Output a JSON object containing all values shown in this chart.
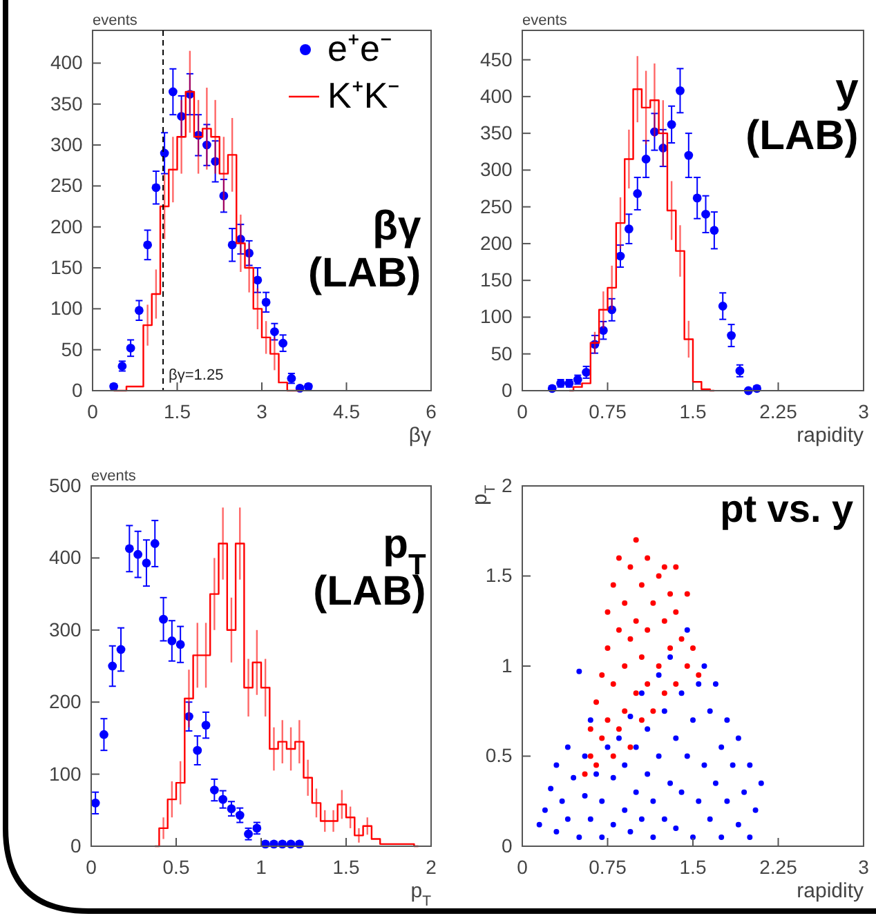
{
  "chart_data": [
    {
      "type": "scatter",
      "xlabel": "βγ",
      "ylabel": "events",
      "xlim": [
        0,
        6
      ],
      "xticks": [
        0,
        1.5,
        3,
        4.5,
        6
      ],
      "ylim": [
        0,
        440
      ],
      "yticks": [
        0,
        50,
        100,
        150,
        200,
        250,
        300,
        350,
        400
      ],
      "legend": "top right",
      "annotations": [
        "βγ (LAB)"
      ],
      "ref_lines": [
        {
          "axis": "x",
          "value": 1.25,
          "label": "βγ=1.25",
          "line_style": "dashed",
          "color": "#000000"
        }
      ],
      "series": [
        {
          "name": "e⁺e⁻",
          "marker": "circle",
          "color": "#0000ff",
          "x": [
            0.375,
            0.525,
            0.675,
            0.825,
            0.975,
            1.125,
            1.275,
            1.425,
            1.575,
            1.725,
            1.875,
            2.025,
            2.175,
            2.325,
            2.475,
            2.625,
            2.775,
            2.925,
            3.075,
            3.225,
            3.375,
            3.525,
            3.675,
            3.825
          ],
          "values": [
            5,
            30,
            52,
            98,
            178,
            248,
            290,
            365,
            335,
            362,
            312,
            300,
            280,
            238,
            178,
            185,
            168,
            135,
            108,
            72,
            58,
            15,
            3,
            5
          ],
          "errors": [
            3,
            6,
            10,
            12,
            18,
            20,
            25,
            28,
            25,
            25,
            25,
            25,
            25,
            20,
            20,
            18,
            15,
            15,
            12,
            10,
            10,
            6,
            3,
            3
          ]
        },
        {
          "name": "K⁺K⁻",
          "type": "step",
          "color": "#ff0000",
          "x": [
            0.375,
            0.525,
            0.675,
            0.825,
            0.975,
            1.125,
            1.275,
            1.425,
            1.575,
            1.725,
            1.875,
            2.025,
            2.175,
            2.325,
            2.475,
            2.625,
            2.775,
            2.925,
            3.075,
            3.225,
            3.375,
            3.525,
            3.675
          ],
          "values": [
            0,
            0,
            5,
            5,
            80,
            118,
            225,
            270,
            310,
            365,
            310,
            320,
            310,
            265,
            288,
            180,
            150,
            100,
            65,
            45,
            10,
            0,
            0
          ],
          "errors": [
            null,
            null,
            null,
            null,
            25,
            30,
            40,
            40,
            45,
            50,
            45,
            50,
            45,
            45,
            45,
            35,
            30,
            25,
            20,
            20,
            null,
            null,
            null
          ]
        }
      ]
    },
    {
      "type": "scatter",
      "xlabel": "rapidity",
      "ylabel": "events",
      "xlim": [
        0,
        3
      ],
      "xticks": [
        0,
        0.75,
        1.5,
        2.25,
        3
      ],
      "ylim": [
        0,
        490
      ],
      "yticks": [
        0,
        50,
        100,
        150,
        200,
        250,
        300,
        350,
        400,
        450
      ],
      "annotations": [
        "y (LAB)"
      ],
      "series": [
        {
          "marker": "circle",
          "color": "#0000ff",
          "x": [
            0.2625,
            0.3375,
            0.4125,
            0.4875,
            0.5625,
            0.6375,
            0.7125,
            0.7875,
            0.8625,
            0.9375,
            1.0125,
            1.0875,
            1.1625,
            1.2375,
            1.3125,
            1.3875,
            1.4625,
            1.5375,
            1.6125,
            1.6875,
            1.7625,
            1.8375,
            1.9125,
            1.9875,
            2.0625
          ],
          "values": [
            3,
            10,
            10,
            15,
            25,
            63,
            82,
            110,
            183,
            220,
            268,
            315,
            352,
            330,
            362,
            408,
            320,
            262,
            240,
            218,
            115,
            75,
            27,
            0,
            3
          ],
          "errors": [
            3,
            5,
            5,
            6,
            8,
            12,
            12,
            15,
            15,
            20,
            22,
            25,
            25,
            25,
            25,
            30,
            30,
            28,
            25,
            25,
            18,
            15,
            8,
            null,
            3
          ]
        },
        {
          "type": "step",
          "color": "#ff0000",
          "x": [
            0.4125,
            0.4875,
            0.5625,
            0.6375,
            0.7125,
            0.7875,
            0.8625,
            0.9375,
            1.0125,
            1.0875,
            1.1625,
            1.2375,
            1.3125,
            1.3875,
            1.4625,
            1.5375,
            1.6125,
            1.6875
          ],
          "values": [
            0,
            5,
            10,
            65,
            110,
            140,
            228,
            315,
            410,
            385,
            395,
            350,
            245,
            190,
            70,
            12,
            2,
            0
          ],
          "errors": [
            null,
            null,
            null,
            15,
            25,
            30,
            35,
            40,
            45,
            50,
            50,
            45,
            40,
            35,
            25,
            null,
            null,
            null
          ]
        }
      ]
    },
    {
      "type": "scatter",
      "xlabel": "p$_{T}$",
      "ylabel": "events",
      "xlim": [
        0,
        2
      ],
      "xticks": [
        0,
        0.5,
        1,
        1.5,
        2
      ],
      "ylim": [
        0,
        500
      ],
      "yticks": [
        0,
        100,
        200,
        300,
        400,
        500
      ],
      "annotations": [
        "p$_{T}$ (LAB)"
      ],
      "series": [
        {
          "marker": "circle",
          "color": "#0000ff",
          "x": [
            0.025,
            0.075,
            0.125,
            0.175,
            0.225,
            0.275,
            0.325,
            0.375,
            0.425,
            0.475,
            0.525,
            0.575,
            0.625,
            0.675,
            0.725,
            0.775,
            0.825,
            0.875,
            0.925,
            0.975,
            1.025,
            1.075,
            1.125,
            1.175,
            1.225
          ],
          "values": [
            60,
            155,
            250,
            273,
            413,
            405,
            393,
            420,
            315,
            285,
            280,
            180,
            133,
            168,
            78,
            65,
            52,
            43,
            17,
            25,
            3,
            3,
            3,
            3,
            3
          ],
          "errors": [
            15,
            22,
            28,
            30,
            32,
            32,
            32,
            32,
            30,
            28,
            25,
            20,
            20,
            18,
            15,
            12,
            10,
            10,
            8,
            8,
            3,
            3,
            3,
            3,
            3
          ]
        },
        {
          "type": "step",
          "color": "#ff0000",
          "x": [
            0.375,
            0.425,
            0.475,
            0.525,
            0.575,
            0.625,
            0.675,
            0.725,
            0.775,
            0.825,
            0.875,
            0.925,
            0.975,
            1.025,
            1.075,
            1.125,
            1.175,
            1.225,
            1.275,
            1.325,
            1.375,
            1.425,
            1.475,
            1.525,
            1.575,
            1.625,
            1.675,
            1.725,
            1.775,
            1.825,
            1.875,
            1.925
          ],
          "values": [
            0,
            25,
            65,
            88,
            205,
            265,
            265,
            350,
            420,
            300,
            420,
            220,
            255,
            220,
            135,
            145,
            135,
            145,
            95,
            60,
            35,
            35,
            58,
            40,
            15,
            28,
            10,
            3,
            3,
            3,
            3,
            0
          ],
          "errors": [
            null,
            15,
            25,
            30,
            40,
            45,
            45,
            50,
            50,
            45,
            50,
            40,
            45,
            40,
            30,
            30,
            30,
            30,
            25,
            20,
            15,
            15,
            20,
            15,
            10,
            12,
            null,
            null,
            null,
            null,
            null,
            null
          ]
        }
      ]
    },
    {
      "type": "scatter",
      "xlabel": "rapidity",
      "ylabel": "p$_{T}$",
      "xlim": [
        0,
        3
      ],
      "xticks": [
        0,
        0.75,
        1.5,
        2.25,
        3
      ],
      "ylim": [
        0,
        2
      ],
      "yticks": [
        0,
        0.5,
        1,
        1.5,
        2
      ],
      "annotations": [
        "pt vs. y"
      ],
      "series": [
        {
          "marker": "circle",
          "color": "#0000ff",
          "x": [
            0.15,
            0.2,
            0.25,
            0.3,
            0.3,
            0.35,
            0.4,
            0.4,
            0.45,
            0.5,
            0.5,
            0.55,
            0.55,
            0.6,
            0.6,
            0.65,
            0.7,
            0.7,
            0.75,
            0.8,
            0.8,
            0.85,
            0.9,
            0.9,
            0.95,
            0.95,
            1.0,
            1.0,
            1.05,
            1.05,
            1.1,
            1.1,
            1.15,
            1.15,
            1.2,
            1.2,
            1.25,
            1.25,
            1.3,
            1.3,
            1.35,
            1.35,
            1.4,
            1.4,
            1.45,
            1.45,
            1.5,
            1.5,
            1.55,
            1.55,
            1.6,
            1.6,
            1.65,
            1.65,
            1.7,
            1.7,
            1.75,
            1.75,
            1.8,
            1.8,
            1.85,
            1.9,
            1.9,
            1.95,
            2.0,
            2.05,
            2.1,
            2.0
          ],
          "values": [
            0.12,
            0.2,
            0.32,
            0.08,
            0.45,
            0.25,
            0.55,
            0.15,
            0.38,
            0.97,
            0.05,
            0.28,
            0.5,
            0.15,
            0.7,
            0.4,
            0.05,
            0.25,
            0.55,
            0.12,
            0.38,
            0.6,
            0.2,
            0.45,
            0.08,
            0.72,
            0.3,
            0.55,
            0.15,
            0.85,
            0.4,
            0.65,
            0.05,
            0.25,
            0.5,
            0.95,
            0.15,
            0.75,
            0.35,
            1.05,
            0.6,
            0.1,
            0.85,
            0.3,
            1.2,
            0.5,
            0.05,
            0.7,
            0.25,
            0.9,
            0.45,
            1.0,
            0.15,
            0.75,
            0.35,
            0.9,
            0.55,
            0.05,
            0.25,
            0.7,
            0.45,
            0.12,
            0.6,
            0.3,
            0.45,
            0.2,
            0.35,
            0.05
          ]
        },
        {
          "marker": "circle",
          "color": "#ff0000",
          "x": [
            0.55,
            0.6,
            0.6,
            0.65,
            0.65,
            0.7,
            0.7,
            0.75,
            0.75,
            0.75,
            0.8,
            0.8,
            0.8,
            0.85,
            0.85,
            0.85,
            0.9,
            0.9,
            0.9,
            0.95,
            0.95,
            0.95,
            1.0,
            1.0,
            1.0,
            1.05,
            1.05,
            1.05,
            1.1,
            1.1,
            1.1,
            1.15,
            1.15,
            1.2,
            1.2,
            1.25,
            1.25,
            1.25,
            1.3,
            1.3,
            1.35,
            1.35,
            1.4,
            1.45,
            1.5,
            1.55,
            1.45,
            1.35
          ],
          "values": [
            0.4,
            0.5,
            0.65,
            0.8,
            0.45,
            0.95,
            0.6,
            1.1,
            0.7,
            1.3,
            0.5,
            0.9,
            1.45,
            1.2,
            0.65,
            1.6,
            1.0,
            0.75,
            1.35,
            1.55,
            0.55,
            1.15,
            1.7,
            0.85,
            1.25,
            0.7,
            1.45,
            1.05,
            1.6,
            0.9,
            1.2,
            1.35,
            0.75,
            1.5,
            1.0,
            1.55,
            0.85,
            1.25,
            1.1,
            1.4,
            0.9,
            1.3,
            1.15,
            1.0,
            1.1,
            0.95,
            1.4,
            1.55
          ]
        }
      ]
    }
  ]
}
